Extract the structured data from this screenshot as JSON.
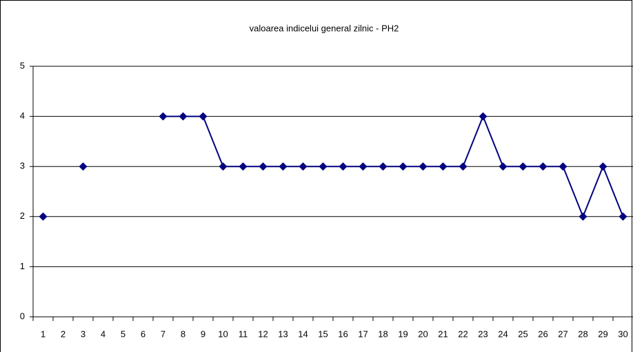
{
  "chart_data": {
    "type": "line",
    "title": "valoarea indicelui general zilnic - PH2",
    "categories": [
      "1",
      "2",
      "3",
      "4",
      "5",
      "6",
      "7",
      "8",
      "9",
      "10",
      "11",
      "12",
      "13",
      "14",
      "15",
      "16",
      "17",
      "18",
      "19",
      "20",
      "21",
      "22",
      "23",
      "24",
      "25",
      "26",
      "27",
      "28",
      "29",
      "30"
    ],
    "series": [
      {
        "name": "PH2",
        "color": "#000080",
        "values": [
          2,
          null,
          3,
          null,
          null,
          null,
          4,
          4,
          4,
          3,
          3,
          3,
          3,
          3,
          3,
          3,
          3,
          3,
          3,
          3,
          3,
          3,
          4,
          3,
          3,
          3,
          3,
          2,
          3,
          2
        ]
      }
    ],
    "ylim": [
      0,
      5
    ],
    "yticks": [
      0,
      1,
      2,
      3,
      4,
      5
    ],
    "grid": true
  }
}
